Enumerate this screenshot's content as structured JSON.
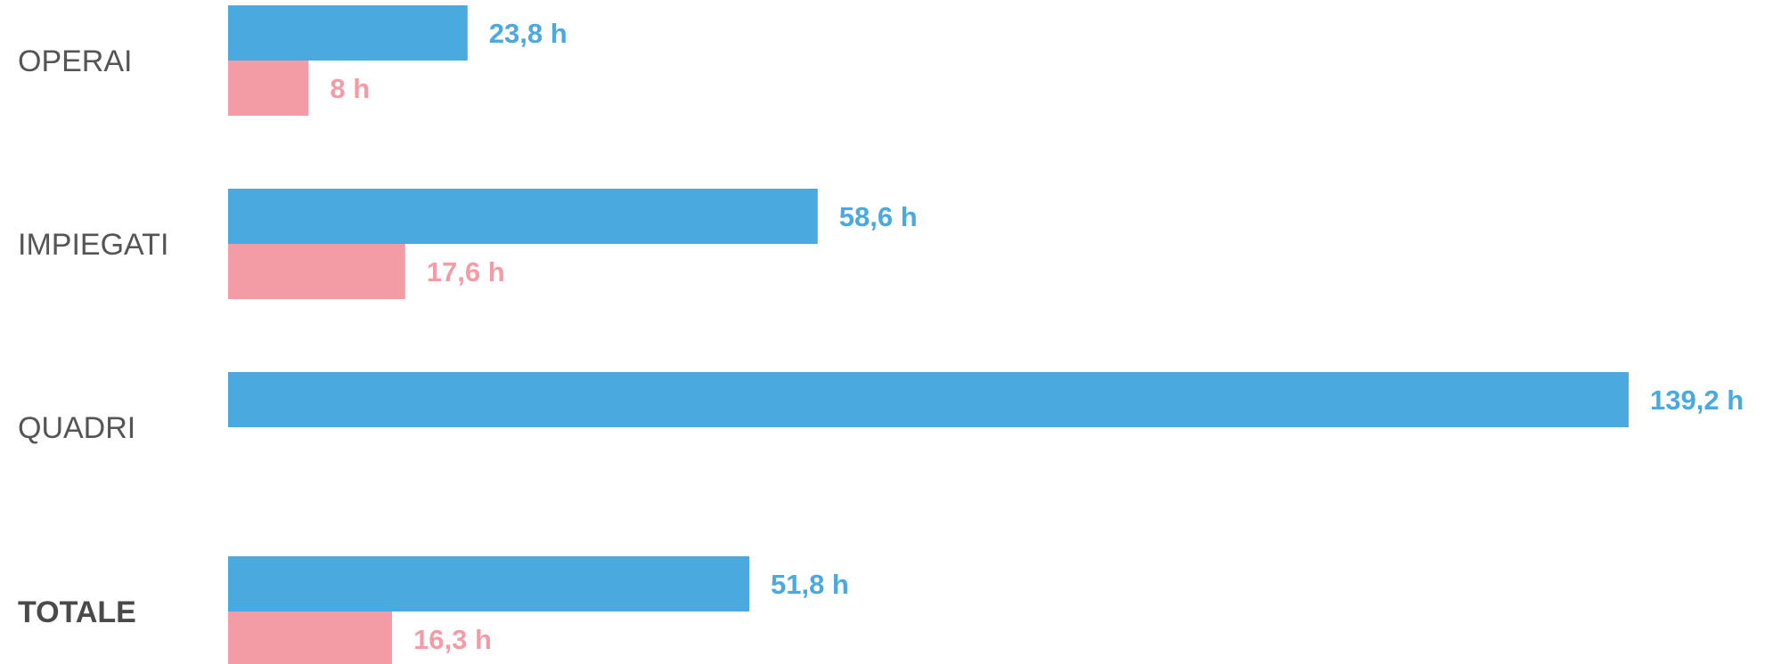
{
  "chart_data": {
    "type": "bar",
    "orientation": "horizontal",
    "categories": [
      "OPERAI",
      "IMPIEGATI",
      "QUADRI",
      "TOTALE"
    ],
    "emphasized_categories": [
      "TOTALE"
    ],
    "series": [
      {
        "values": [
          23.8,
          58.6,
          139.2,
          51.8
        ],
        "labels": [
          "23,8 h",
          "58,6 h",
          "139,2 h",
          "51,8 h"
        ],
        "color": "#4aa9df"
      },
      {
        "values": [
          8,
          17.6,
          null,
          16.3
        ],
        "labels": [
          "8 h",
          "17,6 h",
          "",
          "16,3 h"
        ],
        "color": "#f49ca6"
      }
    ],
    "title": "",
    "xlabel": "",
    "ylabel": "",
    "xlim": [
      0,
      139.2
    ],
    "grid": false,
    "legend": "none"
  }
}
